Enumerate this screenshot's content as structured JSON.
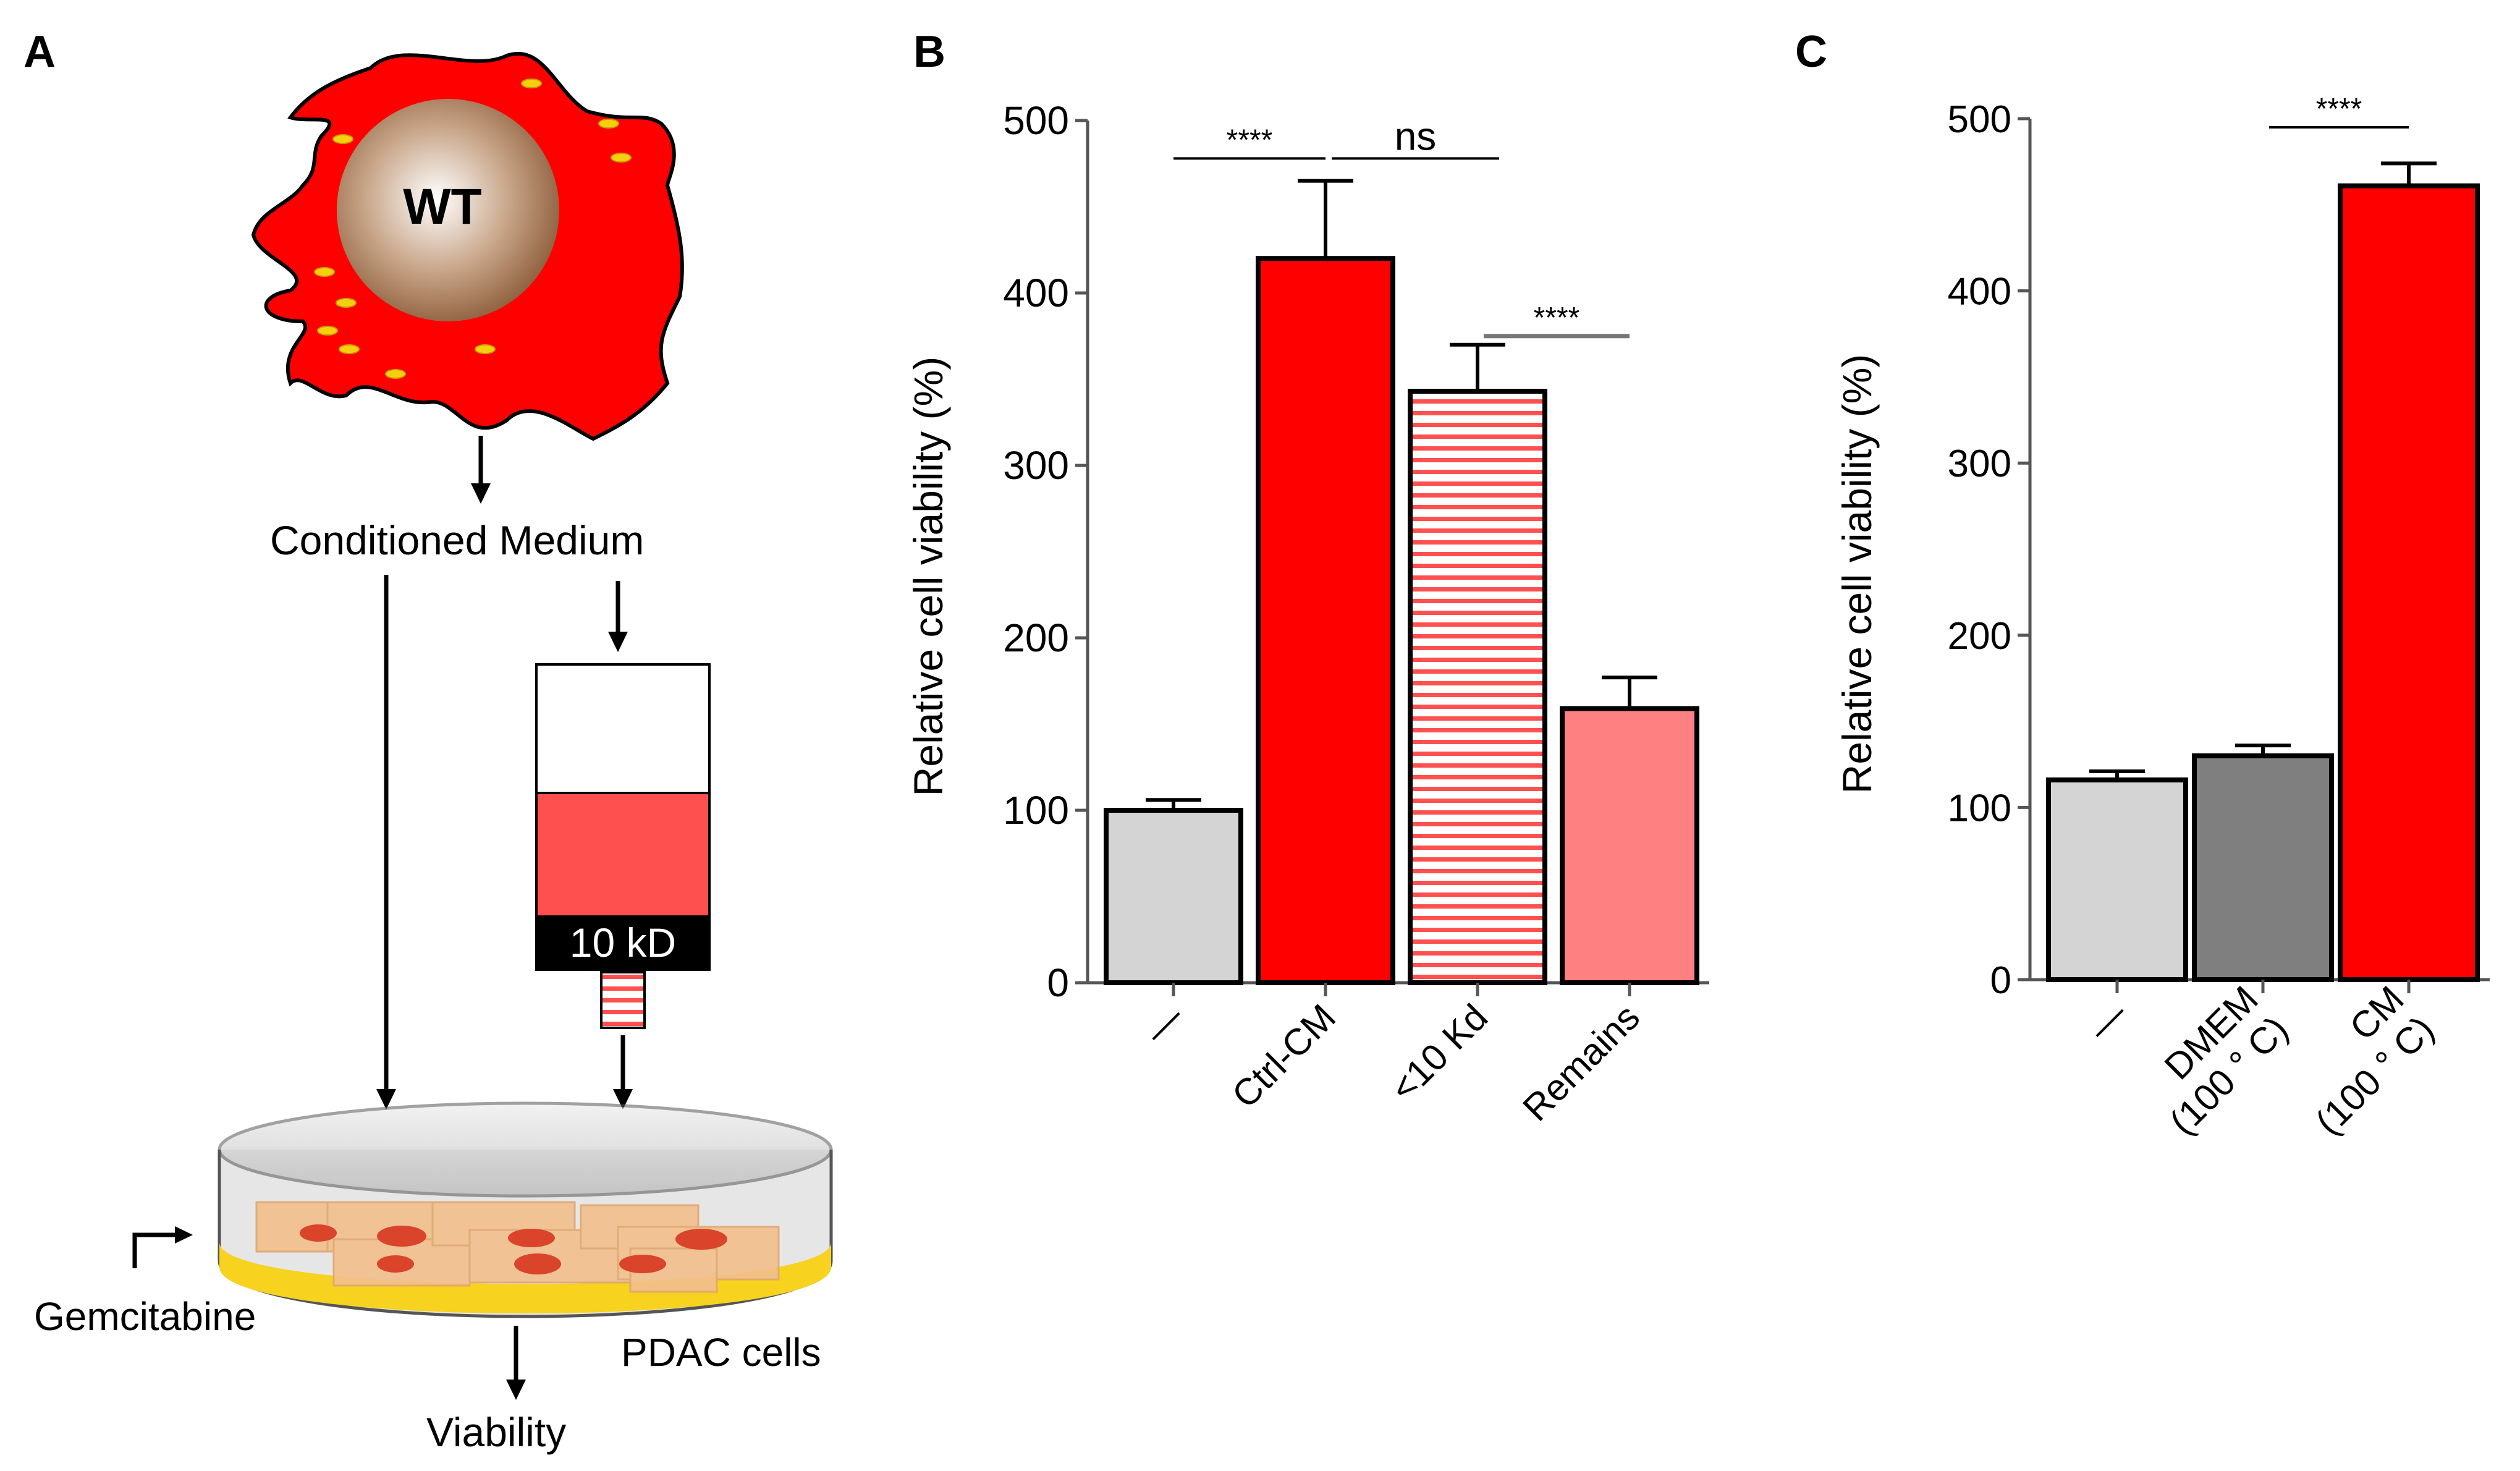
{
  "panels": {
    "a": {
      "letter": "A",
      "cell_label": "WT",
      "conditioned_medium": "Conditioned  Medium",
      "filter_label": "10 kD",
      "gemcitabine": "Gemcitabine",
      "pdac_cells": "PDAC cells",
      "viability": "Viability"
    },
    "b": {
      "letter": "B"
    },
    "c": {
      "letter": "C"
    }
  },
  "colors": {
    "red": "#ff0000",
    "light_gray": "#d4d4d4",
    "dark_gray": "#7f7f7f",
    "pink": "#ff8080",
    "medium_pink": "#ff5050",
    "nucleus_brown": "#a57855",
    "dish_yellow": "#f7d21e",
    "cell_orange": "#f3bf8c"
  },
  "chart_data": [
    {
      "type": "bar",
      "panel": "B",
      "ylabel": "Relative  cell viability  (%)",
      "ylim": [
        0,
        500
      ],
      "yticks": [
        "0",
        "100",
        "200",
        "300",
        "400",
        "500"
      ],
      "categories": [
        "—",
        "Ctrl-CM",
        "<10 Kd",
        "Remains"
      ],
      "values": [
        100,
        420,
        343,
        159
      ],
      "errors": [
        6,
        45,
        27,
        18
      ],
      "bar_styles": [
        "light_gray",
        "red",
        "striped",
        "pink"
      ],
      "significance": [
        {
          "from": 0,
          "to": 1,
          "label": "****",
          "y": 478
        },
        {
          "from": 1,
          "to": 2,
          "label": "ns",
          "y": 478
        },
        {
          "from": 2,
          "to": 3,
          "label": "****",
          "y": 375
        }
      ]
    },
    {
      "type": "bar",
      "panel": "C",
      "ylabel": "Relative  cell viability  (%)",
      "ylim": [
        0,
        500
      ],
      "yticks": [
        "0",
        "100",
        "200",
        "300",
        "400",
        "500"
      ],
      "categories": [
        "—",
        "DMEM\n(100 ° C)",
        "CM\n(100 ° C)"
      ],
      "values": [
        116,
        130,
        461
      ],
      "errors": [
        5,
        6,
        13
      ],
      "bar_styles": [
        "light_gray",
        "dark_gray",
        "red"
      ],
      "significance": [
        {
          "from": 1,
          "to": 2,
          "label": "****",
          "y": 495
        }
      ]
    }
  ]
}
